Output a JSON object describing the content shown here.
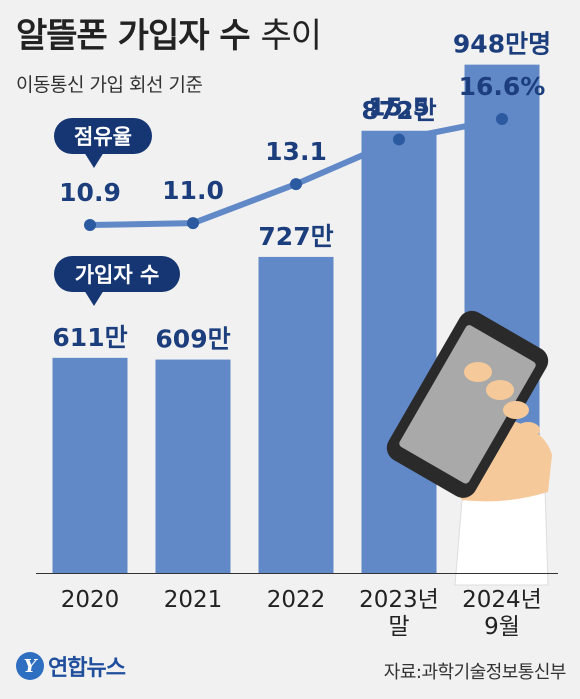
{
  "header": {
    "title_bold": "알뜰폰 가입자 수",
    "title_light": "추이",
    "subtitle": "이동통신 가입 회선 기준"
  },
  "footer": {
    "logo_text": "연합뉴스",
    "source": "자료:과학기술정보통신부"
  },
  "colors": {
    "bar": "#6189c8",
    "line": "#6189c8",
    "dot": "#2b5aa0",
    "pill": "#153673",
    "label": "#1c3e7c",
    "phone_body": "#2a2a2a",
    "phone_screen": "#a9a9a9",
    "hand": "#f5c99a"
  },
  "chart_data": [
    {
      "type": "line",
      "legend_label": "점유율",
      "categories": [
        "2020",
        "2021",
        "2022",
        "2023년 말",
        "2024년 9월"
      ],
      "values": [
        10.9,
        11.0,
        13.1,
        15.5,
        16.6
      ],
      "value_labels": [
        "10.9",
        "11.0",
        "13.1",
        "15.5",
        "16.6%"
      ],
      "unit": "%"
    },
    {
      "type": "bar",
      "legend_label": "가입자 수",
      "categories": [
        "2020",
        "2021",
        "2022",
        "2023년 말",
        "2024년 9월"
      ],
      "category_lines": [
        [
          "2020"
        ],
        [
          "2021"
        ],
        [
          "2022"
        ],
        [
          "2023년",
          "말"
        ],
        [
          "2024년",
          "9월"
        ]
      ],
      "values": [
        611,
        609,
        727,
        872,
        948
      ],
      "value_labels": [
        "611만",
        "609만",
        "727만",
        "872만",
        "948만명"
      ],
      "unit": "만명"
    }
  ],
  "illustration": {
    "icon": "phone-in-hand-icon"
  }
}
